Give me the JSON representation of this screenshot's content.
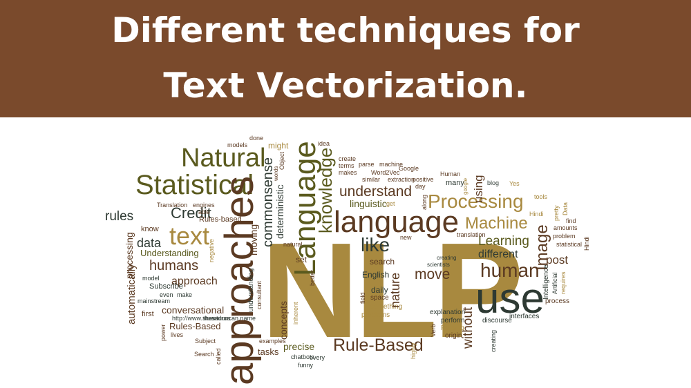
{
  "title": {
    "line1": "Different techniques for",
    "line2": "Text Vectorization."
  },
  "colors": {
    "banner": "#7a4a2c",
    "title_text": "#ffffff",
    "olive": "#5a5a1e",
    "tan": "#a8893f",
    "dark": "#2e3a33",
    "brown": "#5b3a22"
  },
  "word_cloud": [
    "NLP",
    "approaches",
    "use",
    "language",
    "Language",
    "Statistical",
    "Natural",
    "text",
    "Processing",
    "human",
    "Rule-Based",
    "like",
    "knowledge",
    "Machine",
    "understand",
    "Credit",
    "humans",
    "Learning",
    "Image",
    "move",
    "commonsense",
    "rules",
    "data",
    "different",
    "approach",
    "post",
    "conversational",
    "nature",
    "deterministic",
    "linguistic",
    "using",
    "English",
    "without",
    "search",
    "concepts",
    "processing",
    "automatically",
    "Understanding",
    "Rules-Based",
    "precise",
    "tasks",
    "moving",
    "understanding",
    "set",
    "daily",
    "space",
    "problems",
    "something",
    "explanation",
    "perform",
    "origin",
    "Parsing",
    "discourse",
    "interfaces",
    "process",
    "requires",
    "Artificial",
    "Intelligence",
    "statistical",
    "amounts",
    "problem",
    "find",
    "Data",
    "pretty",
    "Hindi",
    "tools",
    "Yes",
    "blog",
    "google",
    "Human",
    "many",
    "day",
    "extraction",
    "positive",
    "machine",
    "parse",
    "create",
    "terms",
    "makes",
    "Word2Vec",
    "similar",
    "Google",
    "idea",
    "might",
    "done",
    "models",
    "Object",
    "words",
    "able",
    "engines",
    "Translation",
    "Rules-based",
    "know",
    "model",
    "Subscribe",
    "even",
    "make",
    "mainstream",
    "http://www.stuartduncan.name",
    "thesaurus",
    "first",
    "lives",
    "power",
    "Subject",
    "Search",
    "called",
    "examples",
    "every",
    "chatbots",
    "funny",
    "highly",
    "Verb",
    "creating",
    "scientists",
    "new",
    "translation",
    "natural",
    "get",
    "along",
    "consultant",
    "field",
    "inherent",
    "negative",
    "better",
    "provide",
    "world"
  ]
}
